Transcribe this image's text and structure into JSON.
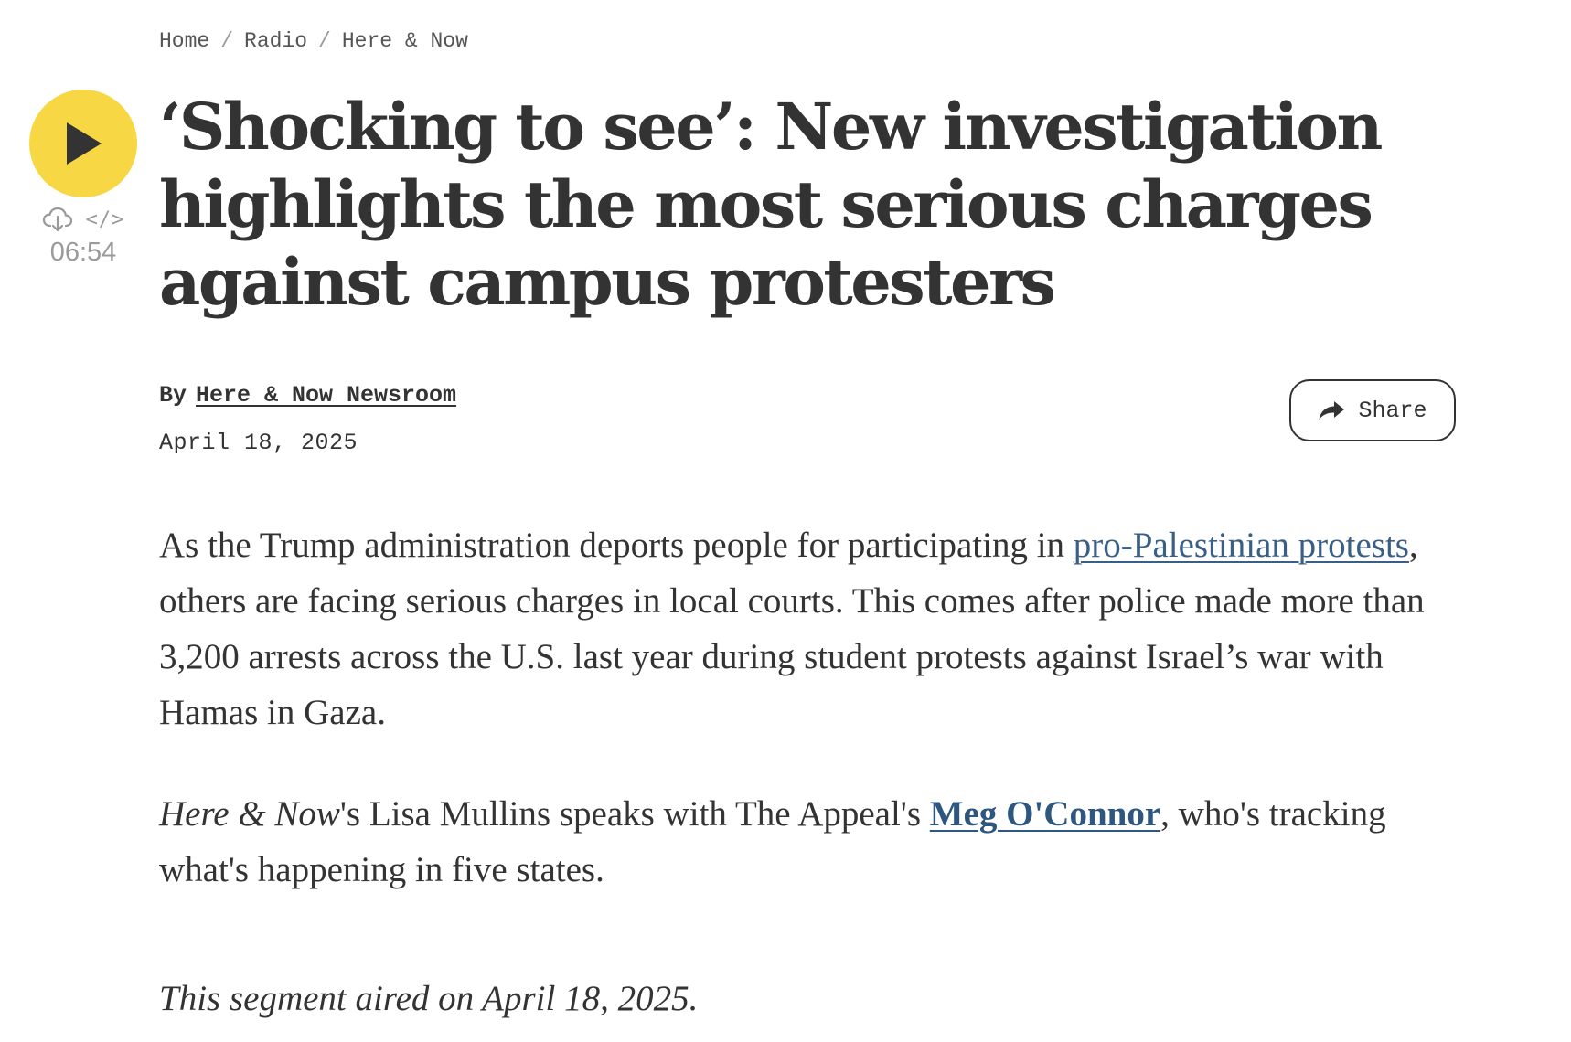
{
  "breadcrumb": {
    "items": [
      "Home",
      "Radio",
      "Here & Now"
    ],
    "separator": "/"
  },
  "player": {
    "icons": [
      "play-icon",
      "download-icon",
      "embed-icon"
    ],
    "embed_label": "</>",
    "duration": "06:54",
    "play_color": "#f7d844"
  },
  "article": {
    "headline": "‘Shocking to see’: New investigation highlights the most serious charges against campus protesters",
    "byline": {
      "prefix": "By",
      "author": "Here & Now Newsroom"
    },
    "date": "April 18, 2025",
    "share_label": "Share",
    "paragraphs": {
      "p1": {
        "before": "As the Trump administration deports people for participating in ",
        "link": "pro-Palestinian protests",
        "after": ", others are facing serious charges in local courts. This comes after police made more than 3,200 arrests across the U.S. last year during student protests against Israel’s war with Hamas in Gaza."
      },
      "p2": {
        "show": "Here & Now",
        "middle": "'s Lisa Mullins speaks with The Appeal's ",
        "link": "Meg O'Connor",
        "after": ", who's tracking what's happening in five states."
      }
    },
    "aired_note": "This segment aired on April 18, 2025."
  },
  "colors": {
    "text": "#333333",
    "link": "#3a5f85",
    "muted": "#9a9a9a"
  }
}
